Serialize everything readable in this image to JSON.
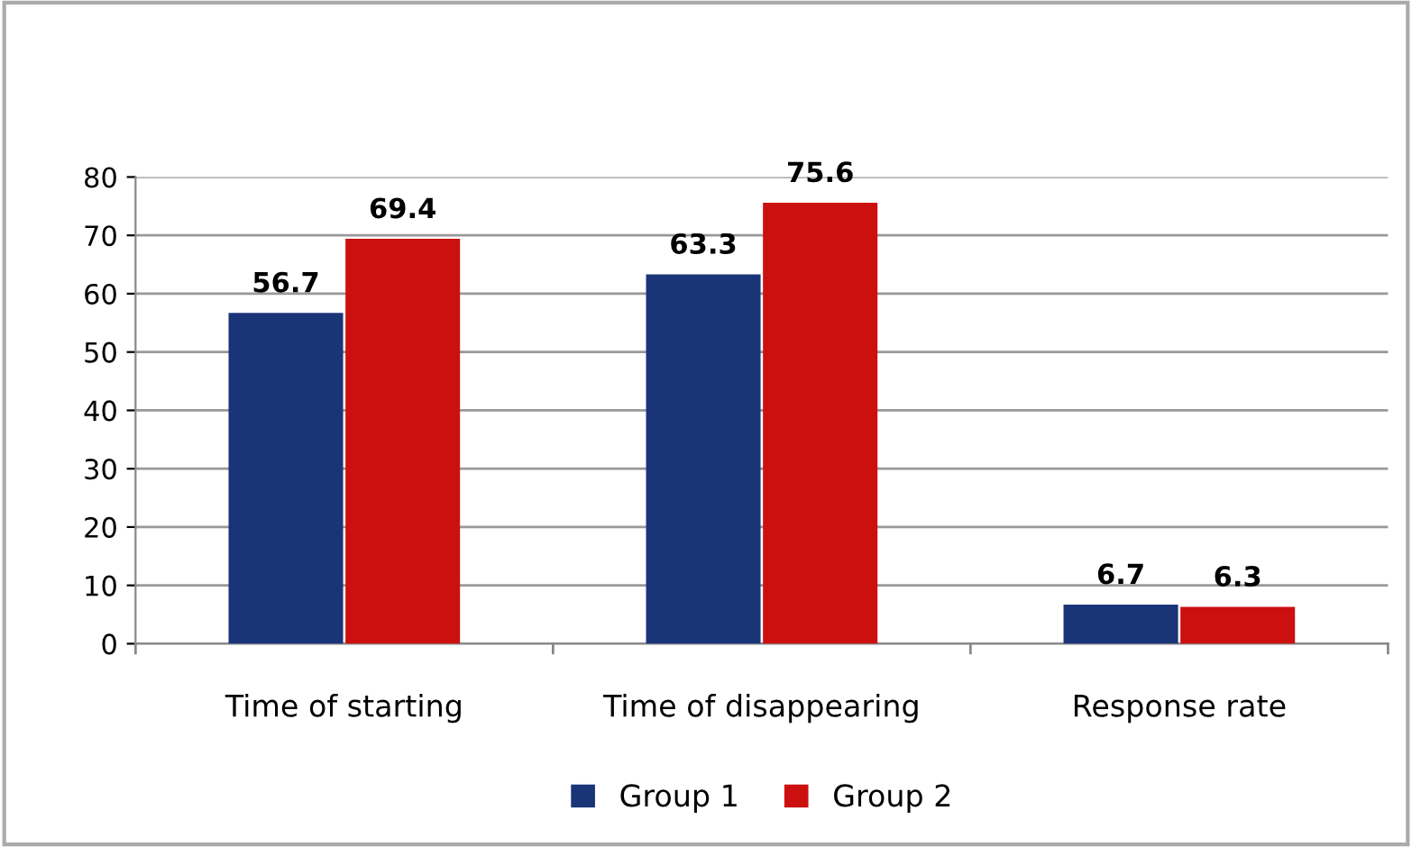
{
  "chart_data": {
    "type": "bar",
    "categories": [
      "Time of starting",
      "Time of disappearing",
      "Response rate"
    ],
    "series": [
      {
        "name": "Group 1",
        "color": "#1a3478",
        "values": [
          56.7,
          63.3,
          6.7
        ]
      },
      {
        "name": "Group 2",
        "color": "#cc1010",
        "values": [
          69.4,
          75.6,
          6.3
        ]
      }
    ],
    "ylim": [
      0,
      80
    ],
    "yticks": [
      0,
      10,
      20,
      30,
      40,
      50,
      60,
      70,
      80
    ],
    "grid": "y",
    "legend": "bottom",
    "data_labels": true
  }
}
